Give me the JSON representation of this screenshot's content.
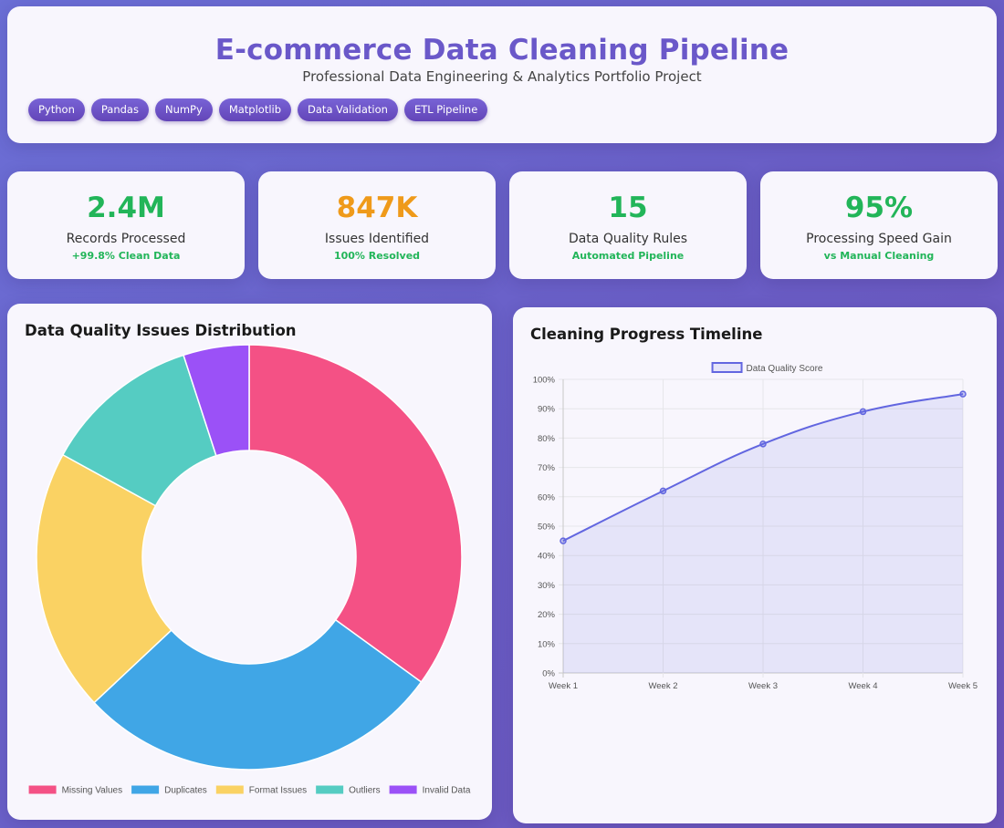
{
  "header": {
    "title": "E-commerce Data Cleaning Pipeline",
    "subtitle": "Professional Data Engineering & Analytics Portfolio Project",
    "tags": [
      "Python",
      "Pandas",
      "NumPy",
      "Matplotlib",
      "Data Validation",
      "ETL Pipeline"
    ]
  },
  "stats": [
    {
      "value": "2.4M",
      "label": "Records Processed",
      "sub": "+99.8% Clean Data",
      "color": "#22b559"
    },
    {
      "value": "847K",
      "label": "Issues Identified",
      "sub": "100% Resolved",
      "color": "#ef9a1a"
    },
    {
      "value": "15",
      "label": "Data Quality Rules",
      "sub": "Automated Pipeline",
      "color": "#22b559"
    },
    {
      "value": "95%",
      "label": "Processing Speed Gain",
      "sub": "vs Manual Cleaning",
      "color": "#22b559"
    }
  ],
  "chart_data": [
    {
      "type": "pie",
      "title": "Data Quality Issues Distribution",
      "categories": [
        "Missing Values",
        "Duplicates",
        "Format Issues",
        "Outliers",
        "Invalid Data"
      ],
      "values": [
        35,
        28,
        20,
        12,
        5
      ],
      "colors": [
        "#f45185",
        "#40a6e6",
        "#fad263",
        "#55ccc2",
        "#9b51f7"
      ],
      "legend": "bottom"
    },
    {
      "type": "line",
      "title": "Cleaning Progress Timeline",
      "x": [
        "Week 1",
        "Week 2",
        "Week 3",
        "Week 4",
        "Week 5"
      ],
      "series": [
        {
          "name": "Data Quality Score",
          "values": [
            45,
            62,
            78,
            89,
            95
          ],
          "color": "#6266e0"
        }
      ],
      "ylim": [
        0,
        100
      ],
      "yticks": [
        "0%",
        "10%",
        "20%",
        "30%",
        "40%",
        "50%",
        "60%",
        "70%",
        "80%",
        "90%",
        "100%"
      ],
      "grid": true,
      "legend": "top"
    }
  ]
}
